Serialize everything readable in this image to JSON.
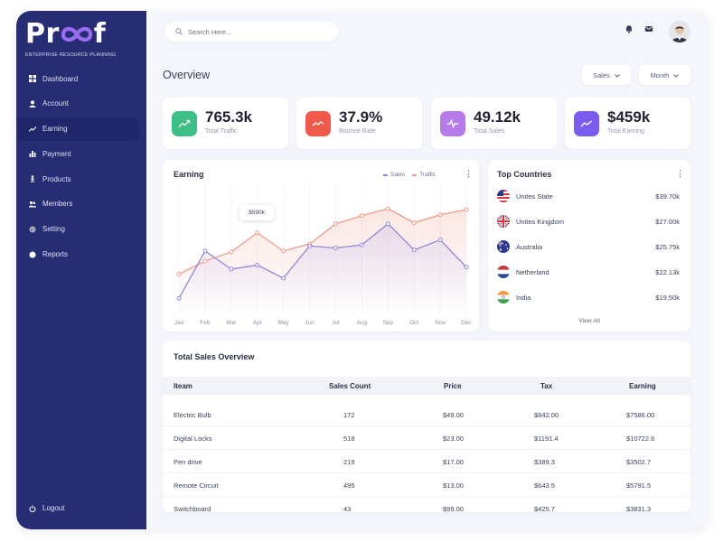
{
  "brand": {
    "name_start": "Pr",
    "name_end": "f",
    "tagline": "ENTERPRISE RESOURCE PLANNING"
  },
  "sidebar": {
    "items": [
      {
        "label": "Dashboard",
        "icon": "dashboard-icon"
      },
      {
        "label": "Account",
        "icon": "user-icon"
      },
      {
        "label": "Earning",
        "icon": "trend-icon",
        "active": true
      },
      {
        "label": "Payment",
        "icon": "bar-chart-icon"
      },
      {
        "label": "Products",
        "icon": "product-icon"
      },
      {
        "label": "Members",
        "icon": "members-icon"
      },
      {
        "label": "Setting",
        "icon": "gear-icon"
      },
      {
        "label": "Reports",
        "icon": "report-icon"
      }
    ],
    "logout": "Logout"
  },
  "header": {
    "search_placeholder": "Search Here...",
    "title": "Overview",
    "filters": [
      {
        "label": "Sales"
      },
      {
        "label": "Month"
      }
    ]
  },
  "colors": {
    "sidebar": "#272d73",
    "traffic": "#3dbf86",
    "bounce": "#ef5a4a",
    "sales": "#b57be8",
    "earning": "#7b5cf0",
    "line_sales": "#8f86d8",
    "line_traffic": "#ef9c8a"
  },
  "stats": [
    {
      "value": "765.3k",
      "label": "Total Traffic",
      "icon": "trend-up-icon"
    },
    {
      "value": "37.9%",
      "label": "Bounce Rate",
      "icon": "trend-icon"
    },
    {
      "value": "49.12k",
      "label": "Total Sales",
      "icon": "pulse-icon"
    },
    {
      "value": "$459k",
      "label": "Total Earning",
      "icon": "trend-icon"
    }
  ],
  "earning": {
    "title": "Earning",
    "legend": [
      "Sales",
      "Traffic"
    ],
    "tooltip": "$590k"
  },
  "chart_data": {
    "type": "line",
    "x": [
      "Jan",
      "Feb",
      "Mar",
      "Apr",
      "May",
      "Jun",
      "Jul",
      "Aug",
      "Sep",
      "Oct",
      "Nov",
      "Dec"
    ],
    "series": [
      {
        "name": "Sales",
        "values": [
          15,
          62,
          44,
          48,
          35,
          67,
          65,
          68,
          89,
          63,
          73,
          46
        ]
      },
      {
        "name": "Traffic",
        "values": [
          39,
          52,
          61,
          80,
          62,
          69,
          89,
          97,
          104,
          90,
          98,
          103
        ]
      }
    ],
    "ylim": [
      0,
      130
    ],
    "grid": false,
    "legend": "top-right"
  },
  "countries": {
    "title": "Top Countries",
    "items": [
      {
        "name": "Unites State",
        "value": "$39.70k",
        "flag": "usa-flag-icon"
      },
      {
        "name": "Unites Kingdom",
        "value": "$27.00k",
        "flag": "uk-flag-icon"
      },
      {
        "name": "Australia",
        "value": "$25.75k",
        "flag": "australia-flag-icon"
      },
      {
        "name": "Netherland",
        "value": "$22.13k",
        "flag": "netherlands-flag-icon"
      },
      {
        "name": "India",
        "value": "$19.50k",
        "flag": "india-flag-icon"
      }
    ],
    "view_all": "View All"
  },
  "sales_table": {
    "title": "Total Sales Overview",
    "columns": [
      "Iteam",
      "Sales Count",
      "Price",
      "Tax",
      "Earning"
    ],
    "rows": [
      [
        "Electric Bulb",
        "172",
        "$49.00",
        "$842.00",
        "$7586.00"
      ],
      [
        "Digital Locks",
        "518",
        "$23.00",
        "$1191.4",
        "$10722.6"
      ],
      [
        "Pen drive",
        "219",
        "$17.00",
        "$389.3",
        "$3502.7"
      ],
      [
        "Remote Circuit",
        "495",
        "$13.00",
        "$643.5",
        "$5791.5"
      ],
      [
        "Switchboard",
        "43",
        "$99.00",
        "$425.7",
        "$3831.3"
      ]
    ]
  }
}
